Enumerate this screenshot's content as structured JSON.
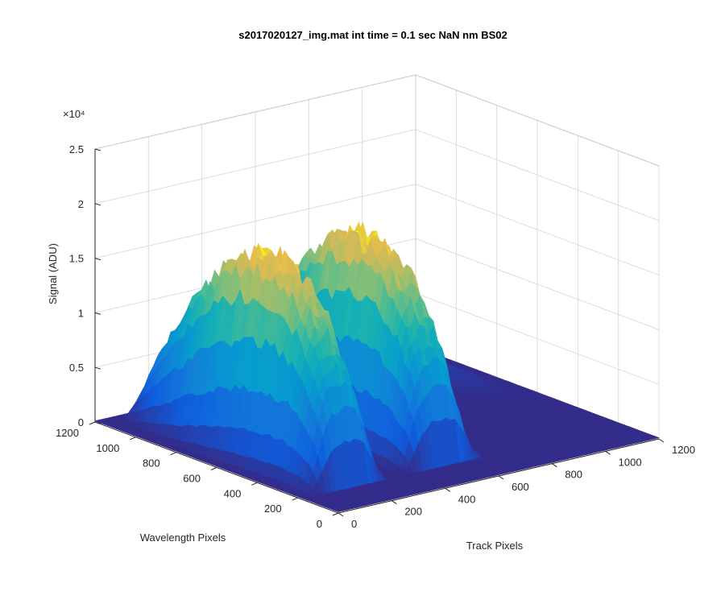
{
  "chart_data": {
    "type": "surface",
    "title": "s2017020127_img.mat int time = 0.1 sec  NaN nm BS02",
    "xlabel": "Track Pixels",
    "ylabel": "Wavelength Pixels",
    "zlabel": "Signal (ADU)",
    "z_exponent": "×10⁴",
    "xlim": [
      0,
      1200
    ],
    "ylim": [
      0,
      1200
    ],
    "zlim": [
      0,
      2.5
    ],
    "x_ticks": [
      "0",
      "200",
      "400",
      "600",
      "800",
      "1000",
      "1200"
    ],
    "y_ticks": [
      "0",
      "200",
      "400",
      "600",
      "800",
      "1000",
      "1200"
    ],
    "z_ticks": [
      "0",
      "0.5",
      "1",
      "1.5",
      "2",
      "2.5"
    ],
    "grid": true,
    "colormap": "parula",
    "colors": {
      "low": "#352a87",
      "mid": "#0f9bd7",
      "high": "#f9fb0e"
    },
    "peaks": [
      {
        "track_center": 180,
        "peak_signal_e4": 1.85
      },
      {
        "track_center": 530,
        "peak_signal_e4": 1.85
      }
    ],
    "secondary_bumps": [
      {
        "track_center": 900,
        "signal_e4": 0.12
      },
      {
        "track_center": 1080,
        "signal_e4": 0.1
      }
    ]
  }
}
